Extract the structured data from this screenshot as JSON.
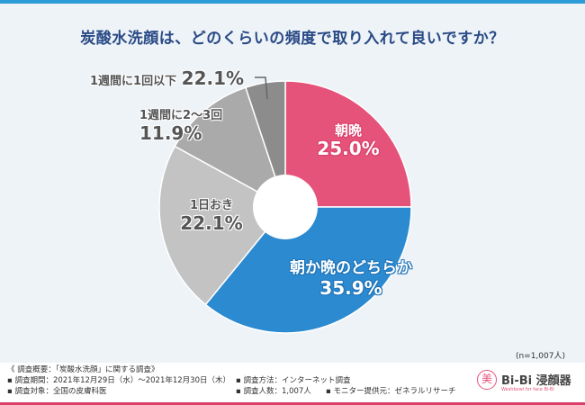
{
  "chart_data": {
    "type": "donut",
    "title": "炭酸水洗顔は、どのくらいの頻度で取り入れて良いですか？",
    "slices": [
      {
        "label": "朝晩",
        "value": 25.0,
        "value_text": "25.0%",
        "color": "#e5527a"
      },
      {
        "label": "朝か晩のどちらか",
        "value": 35.9,
        "value_text": "35.9%",
        "color": "#2b8ad0"
      },
      {
        "label": "1日おき",
        "value": 22.1,
        "value_text": "22.1%",
        "color": "#c3c3c3"
      },
      {
        "label": "1週間に2〜3回",
        "value": 11.9,
        "value_text": "11.9%",
        "color": "#aaaaaa"
      },
      {
        "label": "1週間に1回以下",
        "value": 22.1,
        "value_text": "22.1%",
        "color": "#8c8c8c"
      }
    ],
    "start": "top",
    "direction": "clockwise",
    "legend": "none",
    "note": "(n=1,007人)"
  },
  "footer": {
    "heading": "《 調査概要：「炭酸水洗顔」に関する調査》",
    "period": "▪ 調査期間：2021年12月29日（水）〜2021年12月30日（木）",
    "target": "▪ 調査対象：全国の皮膚科医",
    "method": "▪ 調査方法：インターネット調査",
    "count": "▪ 調査人数：1,007人",
    "provider": "▪ モニター提供元：ゼネラルリサーチ"
  },
  "logo": {
    "mark": "美",
    "brand": "Bi-Bi 浸顔器",
    "tagline": "Washbowl for face  Bi-Bi"
  }
}
